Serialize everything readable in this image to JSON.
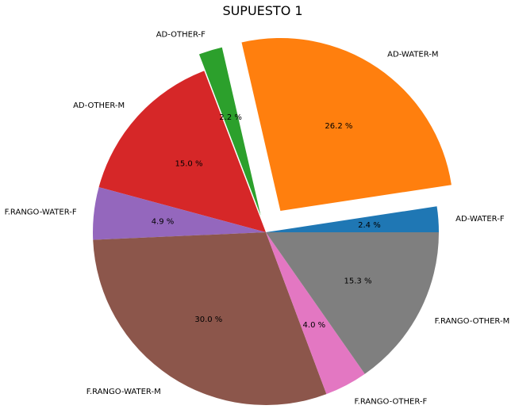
{
  "chart_data": {
    "type": "pie",
    "title": "SUPUESTO 1",
    "start_angle_deg": 0,
    "direction": "counterclockwise",
    "slices": [
      {
        "label": "AD-WATER-F",
        "pct_label": "2.4 %",
        "value": 2.4,
        "color": "#1f77b4",
        "explode": 0
      },
      {
        "label": "AD-WATER-M",
        "pct_label": "26.2 %",
        "value": 26.2,
        "color": "#ff7f0e",
        "explode": 0.15
      },
      {
        "label": "AD-OTHER-F",
        "pct_label": "2.2 %",
        "value": 2.2,
        "color": "#2ca02c",
        "explode": 0.1
      },
      {
        "label": "AD-OTHER-M",
        "pct_label": "15.0 %",
        "value": 15.0,
        "color": "#d62728",
        "explode": 0
      },
      {
        "label": "F.RANGO-WATER-F",
        "pct_label": "4.9 %",
        "value": 4.9,
        "color": "#9467bd",
        "explode": 0
      },
      {
        "label": "F.RANGO-WATER-M",
        "pct_label": "30.0 %",
        "value": 30.0,
        "color": "#8c564b",
        "explode": 0
      },
      {
        "label": "F.RANGO-OTHER-F",
        "pct_label": "4.0 %",
        "value": 4.0,
        "color": "#e377c2",
        "explode": 0
      },
      {
        "label": "F.RANGO-OTHER-M",
        "pct_label": "15.3 %",
        "value": 15.3,
        "color": "#7f7f7f",
        "explode": 0
      }
    ]
  }
}
